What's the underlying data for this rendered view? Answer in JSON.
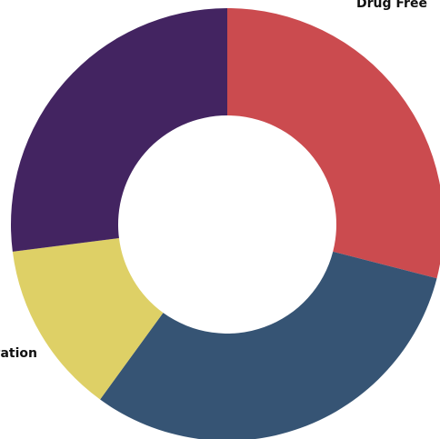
{
  "chart_data": {
    "type": "pie",
    "variant": "donut",
    "title": "",
    "legend": "none",
    "slices": [
      {
        "label": "Drug Free",
        "value": 29,
        "color": "#CB4B4F"
      },
      {
        "label": "",
        "value": 31,
        "color": "#365474"
      },
      {
        "label": "tation",
        "value": 13,
        "color": "#DED066"
      },
      {
        "label": "",
        "value": 27,
        "color": "#432461"
      }
    ]
  }
}
